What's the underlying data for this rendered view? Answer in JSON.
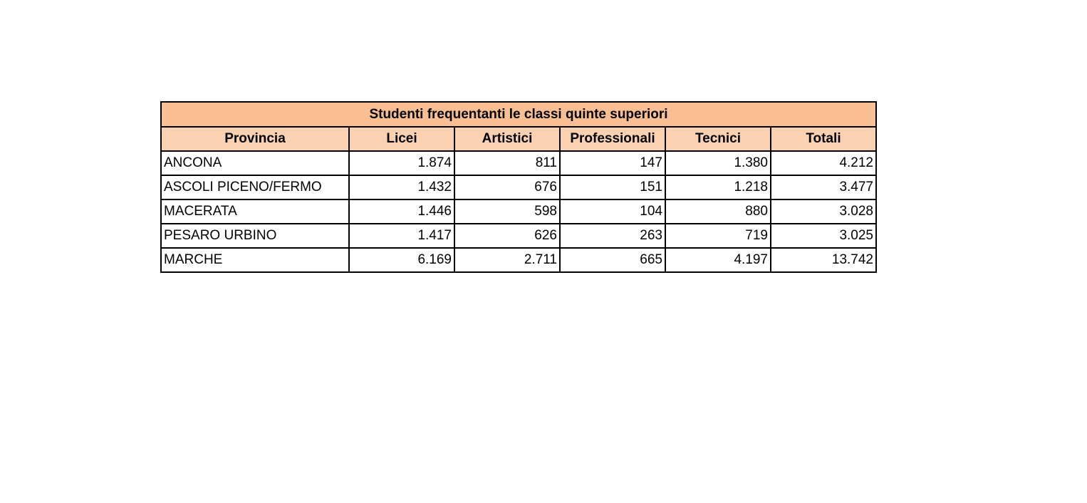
{
  "table": {
    "title": "Studenti frequentanti le classi quinte superiori",
    "headers": [
      "Provincia",
      "Licei",
      "Artistici",
      "Professionali",
      "Tecnici",
      "Totali"
    ],
    "rows": [
      [
        "ANCONA",
        "1.874",
        "811",
        "147",
        "1.380",
        "4.212"
      ],
      [
        "ASCOLI PICENO/FERMO",
        "1.432",
        "676",
        "151",
        "1.218",
        "3.477"
      ],
      [
        "MACERATA",
        "1.446",
        "598",
        "104",
        "880",
        "3.028"
      ],
      [
        "PESARO URBINO",
        "1.417",
        "626",
        "263",
        "719",
        "3.025"
      ],
      [
        "MARCHE",
        "6.169",
        "2.711",
        "665",
        "4.197",
        "13.742"
      ]
    ]
  },
  "colors": {
    "title_bg": "#f9be92",
    "header_bg": "#fbd2b1"
  }
}
